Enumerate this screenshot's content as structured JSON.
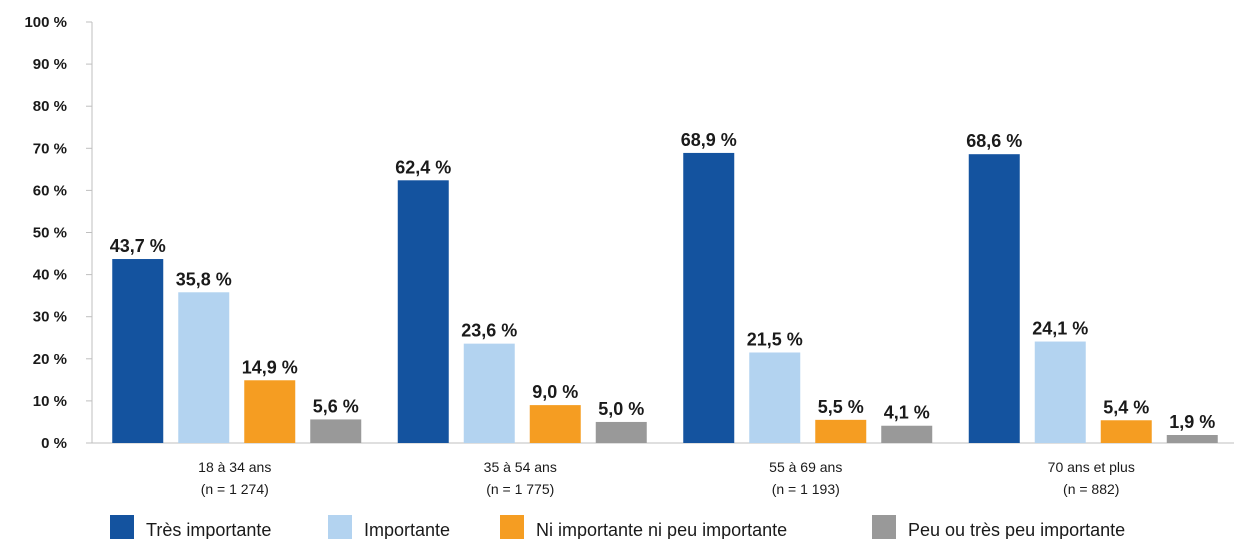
{
  "chart_data": {
    "type": "bar",
    "categories": [
      "18 à 34 ans",
      "35 à 54 ans",
      "55 à 69 ans",
      "70 ans et plus"
    ],
    "category_sublabels": [
      "(n = 1 274)",
      "(n = 1 775)",
      "(n = 1 193)",
      "(n = 882)"
    ],
    "series": [
      {
        "name": "Très importante",
        "color": "#14539f",
        "values": [
          43.7,
          62.4,
          68.9,
          68.6
        ],
        "labels": [
          "43,7 %",
          "62,4 %",
          "68,9 %",
          "68,6 %"
        ]
      },
      {
        "name": "Importante",
        "color": "#b3d3f0",
        "values": [
          35.8,
          23.6,
          21.5,
          24.1
        ],
        "labels": [
          "35,8 %",
          "23,6 %",
          "21,5 %",
          "24,1 %"
        ]
      },
      {
        "name": "Ni importante ni peu importante",
        "color": "#f59d22",
        "values": [
          14.9,
          9.0,
          5.5,
          5.4
        ],
        "labels": [
          "14,9 %",
          "9,0 %",
          "5,5 %",
          "5,4 %"
        ]
      },
      {
        "name": "Peu ou très peu importante",
        "color": "#999999",
        "values": [
          5.6,
          5.0,
          4.1,
          1.9
        ],
        "labels": [
          "5,6 %",
          "5,0 %",
          "4,1 %",
          "1,9 %"
        ]
      }
    ],
    "yticks": [
      "0 %",
      "10 %",
      "20 %",
      "30 %",
      "40 %",
      "50 %",
      "60 %",
      "70 %",
      "80 %",
      "90 %",
      "100 %"
    ],
    "ylim": [
      0,
      100
    ],
    "grid": false,
    "legend_position": "bottom"
  }
}
